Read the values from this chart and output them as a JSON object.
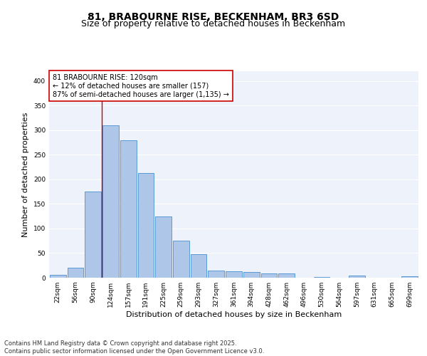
{
  "title_line1": "81, BRABOURNE RISE, BECKENHAM, BR3 6SD",
  "title_line2": "Size of property relative to detached houses in Beckenham",
  "xlabel": "Distribution of detached houses by size in Beckenham",
  "ylabel": "Number of detached properties",
  "categories": [
    "22sqm",
    "56sqm",
    "90sqm",
    "124sqm",
    "157sqm",
    "191sqm",
    "225sqm",
    "259sqm",
    "293sqm",
    "327sqm",
    "361sqm",
    "394sqm",
    "428sqm",
    "462sqm",
    "496sqm",
    "530sqm",
    "564sqm",
    "597sqm",
    "631sqm",
    "665sqm",
    "699sqm"
  ],
  "values": [
    6,
    20,
    175,
    310,
    280,
    213,
    125,
    76,
    48,
    15,
    13,
    11,
    8,
    8,
    0,
    2,
    0,
    4,
    0,
    0,
    3
  ],
  "bar_color": "#aec6e8",
  "bar_edge_color": "#5b9bd5",
  "vline_color": "#cc0000",
  "vline_index": 2.5,
  "annotation_text": "81 BRABOURNE RISE: 120sqm\n← 12% of detached houses are smaller (157)\n87% of semi-detached houses are larger (1,135) →",
  "annotation_box_color": "#ffffff",
  "annotation_box_edge_color": "#cc0000",
  "ylim": [
    0,
    420
  ],
  "yticks": [
    0,
    50,
    100,
    150,
    200,
    250,
    300,
    350,
    400
  ],
  "background_color": "#eef2fb",
  "footer_text": "Contains HM Land Registry data © Crown copyright and database right 2025.\nContains public sector information licensed under the Open Government Licence v3.0.",
  "title_fontsize": 10,
  "subtitle_fontsize": 9,
  "tick_fontsize": 6.5,
  "label_fontsize": 8,
  "annotation_fontsize": 7,
  "footer_fontsize": 6
}
